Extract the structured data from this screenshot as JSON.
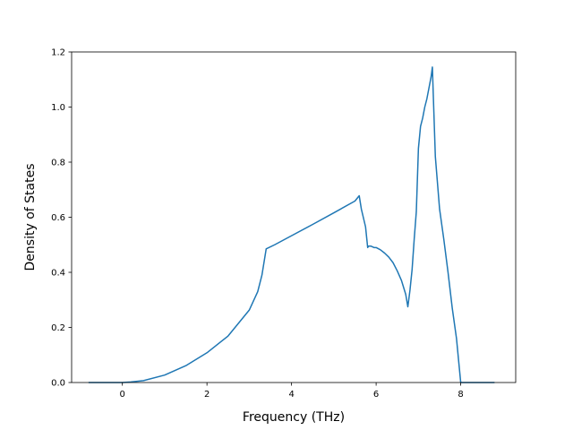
{
  "chart_data": {
    "type": "line",
    "title": "",
    "xlabel": "Frequency (THz)",
    "ylabel": "Density of States",
    "xlim": [
      -1.2,
      9.3
    ],
    "ylim": [
      0.0,
      1.2
    ],
    "x_ticks": [
      0,
      2,
      4,
      6,
      8
    ],
    "x_tick_labels": [
      "0",
      "2",
      "4",
      "6",
      "8"
    ],
    "y_ticks": [
      0.0,
      0.2,
      0.4,
      0.6,
      0.8,
      1.0,
      1.2
    ],
    "y_tick_labels": [
      "0.0",
      "0.2",
      "0.4",
      "0.6",
      "0.8",
      "1.0",
      "1.2"
    ],
    "grid": false,
    "legend": "none",
    "series": [
      {
        "color": "#1f77b4",
        "x": [
          -0.8,
          -0.4,
          0.0,
          0.2,
          0.5,
          1.0,
          1.5,
          2.0,
          2.5,
          3.0,
          3.2,
          3.3,
          3.4,
          3.6,
          4.0,
          4.5,
          5.0,
          5.5,
          5.6,
          5.65,
          5.75,
          5.8,
          5.82,
          5.88,
          5.95,
          6.0,
          6.1,
          6.2,
          6.3,
          6.4,
          6.5,
          6.6,
          6.7,
          6.75,
          6.8,
          6.85,
          6.9,
          6.95,
          7.0,
          7.05,
          7.1,
          7.15,
          7.2,
          7.25,
          7.3,
          7.33,
          7.35,
          7.4,
          7.5,
          7.6,
          7.7,
          7.8,
          7.9,
          8.0,
          8.3,
          8.8
        ],
        "y": [
          0.0,
          0.0,
          0.0,
          0.002,
          0.007,
          0.027,
          0.061,
          0.108,
          0.169,
          0.263,
          0.33,
          0.39,
          0.485,
          0.5,
          0.533,
          0.574,
          0.616,
          0.659,
          0.678,
          0.63,
          0.565,
          0.49,
          0.495,
          0.495,
          0.49,
          0.49,
          0.482,
          0.47,
          0.455,
          0.435,
          0.405,
          0.37,
          0.32,
          0.275,
          0.335,
          0.41,
          0.52,
          0.62,
          0.85,
          0.93,
          0.96,
          1.0,
          1.03,
          1.07,
          1.11,
          1.145,
          1.05,
          0.82,
          0.63,
          0.52,
          0.4,
          0.27,
          0.16,
          0.0,
          0.0,
          0.0
        ]
      }
    ]
  }
}
